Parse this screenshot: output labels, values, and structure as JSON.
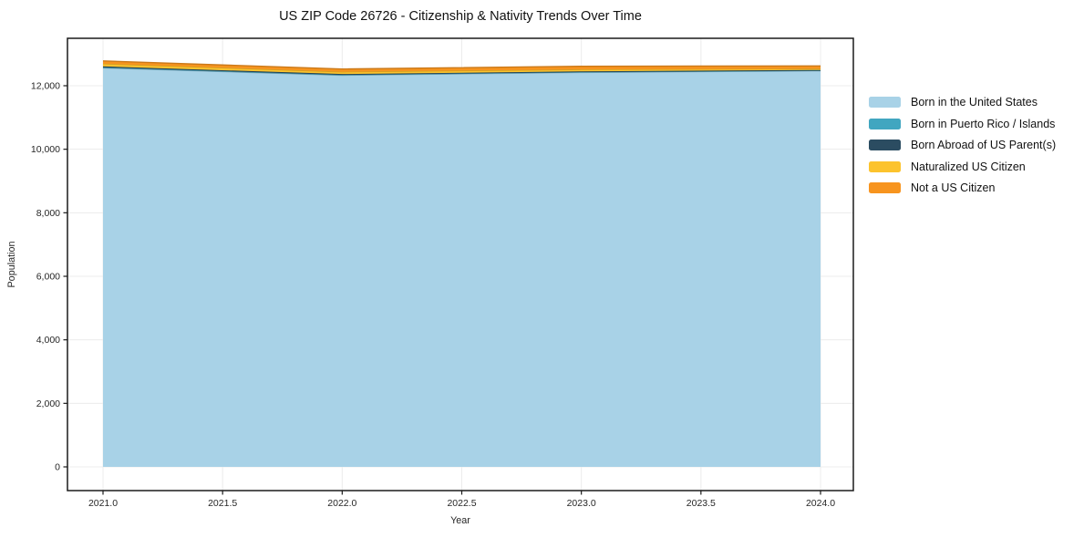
{
  "chart_data": {
    "type": "area",
    "stacked": true,
    "title": "US ZIP Code 26726 - Citizenship & Nativity Trends Over Time",
    "xlabel": "Year",
    "ylabel": "Population",
    "x": [
      2021,
      2022,
      2023,
      2024
    ],
    "series": [
      {
        "name": "Born in the United States",
        "color": "#a8d2e7",
        "values": [
          12560,
          12330,
          12420,
          12470
        ]
      },
      {
        "name": "Born in Puerto Rico / Islands",
        "color": "#41a6c0",
        "values": [
          18,
          14,
          12,
          10
        ]
      },
      {
        "name": "Born Abroad of US Parent(s)",
        "color": "#2b4c61",
        "values": [
          32,
          24,
          20,
          16
        ]
      },
      {
        "name": "Naturalized US Citizen",
        "color": "#fcc32d",
        "values": [
          82,
          70,
          62,
          40
        ]
      },
      {
        "name": "Not a US Citizen",
        "color": "#f7941e",
        "values": [
          88,
          88,
          98,
          88
        ]
      }
    ],
    "x_tick_values": [
      2021.0,
      2021.5,
      2022.0,
      2022.5,
      2023.0,
      2023.5,
      2024.0
    ],
    "x_tick_labels": [
      "2021.0",
      "2021.5",
      "2022.0",
      "2022.5",
      "2023.0",
      "2023.5",
      "2024.0"
    ],
    "y_tick_values": [
      0,
      2000,
      4000,
      6000,
      8000,
      10000,
      12000
    ],
    "y_tick_labels": [
      "0",
      "2,000",
      "4,000",
      "6,000",
      "8,000",
      "10,000",
      "12,000"
    ],
    "grid": true,
    "legend_position": "right",
    "colors": {
      "frame": "#1a1a1a",
      "gridline": "#ececec",
      "tick": "#1a1a1a",
      "background": "#ffffff"
    }
  }
}
